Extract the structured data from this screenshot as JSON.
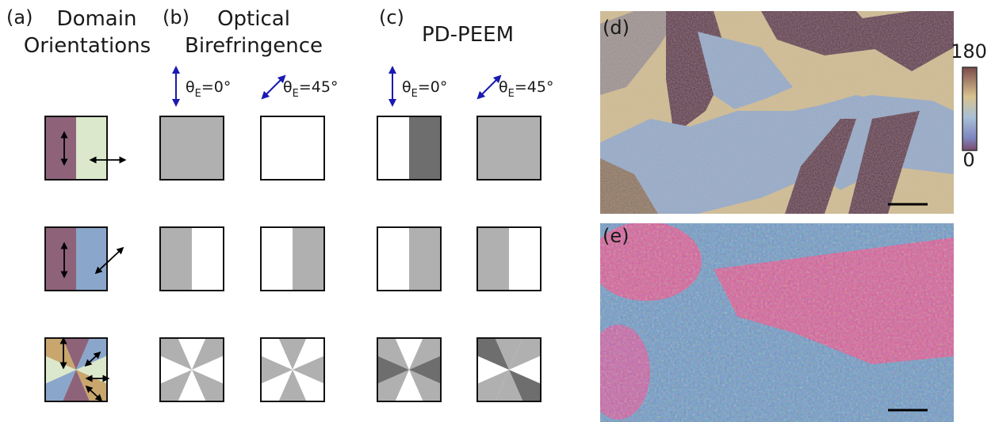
{
  "panel_a": {
    "label": "(a)",
    "title_lines": [
      "Domain",
      "Orientations"
    ]
  },
  "panel_b": {
    "label": "(b)",
    "title_lines": [
      "Optical",
      "Birefringence"
    ],
    "polarizations": [
      {
        "symbol": "θ",
        "subscript": "E",
        "rest": "=0°"
      },
      {
        "symbol": "θ",
        "subscript": "E",
        "rest": "=45°"
      }
    ]
  },
  "panel_c": {
    "label": "(c)",
    "title_lines": [
      "PD-PEEM"
    ],
    "polarizations": [
      {
        "symbol": "θ",
        "subscript": "E",
        "rest": "=0°"
      },
      {
        "symbol": "θ",
        "subscript": "E",
        "rest": "=45°"
      }
    ]
  },
  "panel_d": {
    "label": "(d)",
    "colorbar_top": "180",
    "colorbar_bottom": "0"
  },
  "panel_e": {
    "label": "(e)"
  }
}
